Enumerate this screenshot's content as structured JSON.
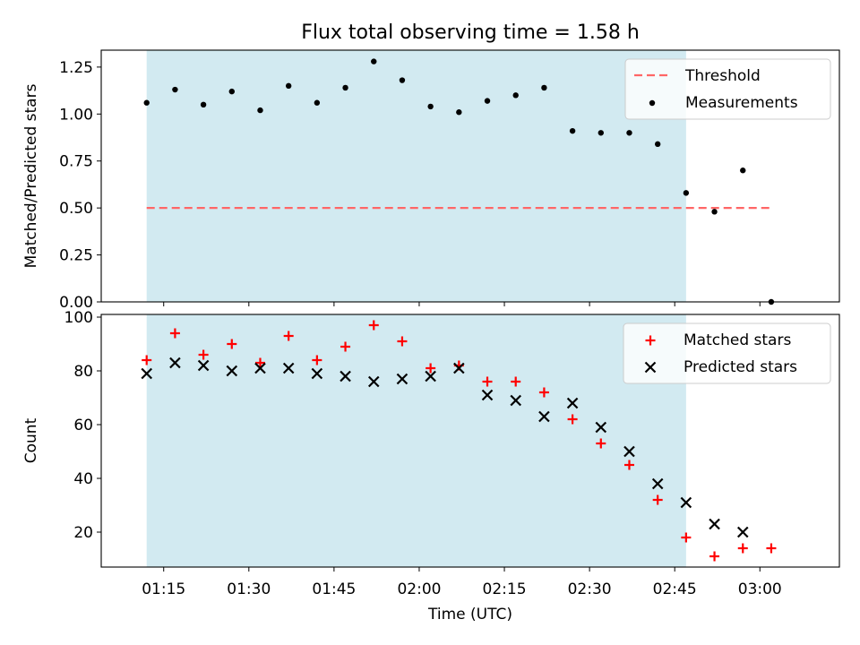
{
  "figure": {
    "title": "Flux total observing time = 1.58 h"
  },
  "colors": {
    "observing_window": "#add8e6",
    "threshold": "#ff6666",
    "measurements": "#000000",
    "matched": "#ff0000",
    "predicted": "#000000"
  },
  "chart_data": [
    {
      "type": "scatter",
      "xlabel": "",
      "ylabel": "Matched/Predicted stars",
      "xlim": [
        "01:04",
        "03:14"
      ],
      "ylim": [
        0,
        1.34
      ],
      "yticks": [
        0.0,
        0.25,
        0.5,
        0.75,
        1.0,
        1.25
      ],
      "ytick_labels": [
        "0.00",
        "0.25",
        "0.50",
        "0.75",
        "1.00",
        "1.25"
      ],
      "grid": false,
      "legend_position": "upper right",
      "shaded_span": {
        "start": "01:12",
        "end": "02:47"
      },
      "threshold": {
        "name": "Threshold",
        "y": 0.5,
        "x_start": "01:12",
        "x_end": "03:02",
        "style": "dashed"
      },
      "series": [
        {
          "name": "Measurements",
          "marker": "dot",
          "x": [
            "01:12",
            "01:17",
            "01:22",
            "01:27",
            "01:32",
            "01:37",
            "01:42",
            "01:47",
            "01:52",
            "01:57",
            "02:02",
            "02:07",
            "02:12",
            "02:17",
            "02:22",
            "02:27",
            "02:32",
            "02:37",
            "02:42",
            "02:47",
            "02:52",
            "02:57",
            "03:02"
          ],
          "y": [
            1.06,
            1.13,
            1.05,
            1.12,
            1.02,
            1.15,
            1.06,
            1.14,
            1.28,
            1.18,
            1.04,
            1.01,
            1.07,
            1.1,
            1.14,
            0.91,
            0.9,
            0.9,
            0.84,
            0.58,
            0.48,
            0.7,
            0.0
          ]
        }
      ]
    },
    {
      "type": "scatter",
      "xlabel": "Time (UTC)",
      "ylabel": "Count",
      "xlim": [
        "01:04",
        "03:14"
      ],
      "ylim": [
        7,
        101
      ],
      "xticks": [
        "01:15",
        "01:30",
        "01:45",
        "02:00",
        "02:15",
        "02:30",
        "02:45",
        "03:00"
      ],
      "yticks": [
        20,
        40,
        60,
        80,
        100
      ],
      "grid": false,
      "legend_position": "upper right",
      "shaded_span": {
        "start": "01:12",
        "end": "02:47"
      },
      "series": [
        {
          "name": "Matched stars",
          "marker": "plus",
          "x": [
            "01:12",
            "01:17",
            "01:22",
            "01:27",
            "01:32",
            "01:37",
            "01:42",
            "01:47",
            "01:52",
            "01:57",
            "02:02",
            "02:07",
            "02:12",
            "02:17",
            "02:22",
            "02:27",
            "02:32",
            "02:37",
            "02:42",
            "02:47",
            "02:52",
            "02:57",
            "03:02"
          ],
          "y": [
            84,
            94,
            86,
            90,
            83,
            93,
            84,
            89,
            97,
            91,
            81,
            82,
            76,
            76,
            72,
            62,
            53,
            45,
            32,
            18,
            11,
            14,
            14
          ]
        },
        {
          "name": "Predicted stars",
          "marker": "x",
          "x": [
            "01:12",
            "01:17",
            "01:22",
            "01:27",
            "01:32",
            "01:37",
            "01:42",
            "01:47",
            "01:52",
            "01:57",
            "02:02",
            "02:07",
            "02:12",
            "02:17",
            "02:22",
            "02:27",
            "02:32",
            "02:37",
            "02:42",
            "02:47",
            "02:52",
            "02:57"
          ],
          "y": [
            79,
            83,
            82,
            80,
            81,
            81,
            79,
            78,
            76,
            77,
            78,
            81,
            71,
            69,
            63,
            68,
            59,
            50,
            38,
            31,
            23,
            20
          ]
        }
      ]
    }
  ]
}
